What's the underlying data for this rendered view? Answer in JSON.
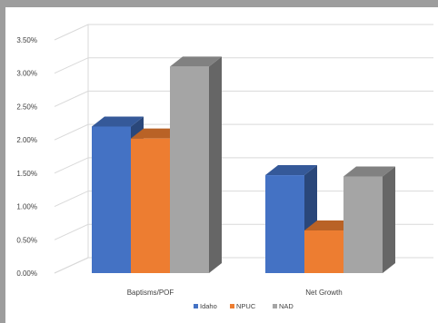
{
  "chart_data": {
    "type": "bar",
    "style": "3d-clustered-column",
    "categories": [
      "Baptisms/POF",
      "Net Growth"
    ],
    "series": [
      {
        "name": "Idaho",
        "color": "#4472c4",
        "values": [
          2.2,
          1.47
        ]
      },
      {
        "name": "NPUC",
        "color": "#ed7d31",
        "values": [
          2.02,
          0.64
        ]
      },
      {
        "name": "NAD",
        "color": "#a5a5a5",
        "values": [
          3.1,
          1.45
        ]
      }
    ],
    "yticks": [
      "0.00%",
      "0.50%",
      "1.00%",
      "1.50%",
      "2.00%",
      "2.50%",
      "3.00%",
      "3.50%"
    ],
    "ylim": [
      0,
      3.5
    ],
    "grid": true,
    "legend_position": "bottom",
    "title": "",
    "xlabel": "",
    "ylabel": ""
  }
}
